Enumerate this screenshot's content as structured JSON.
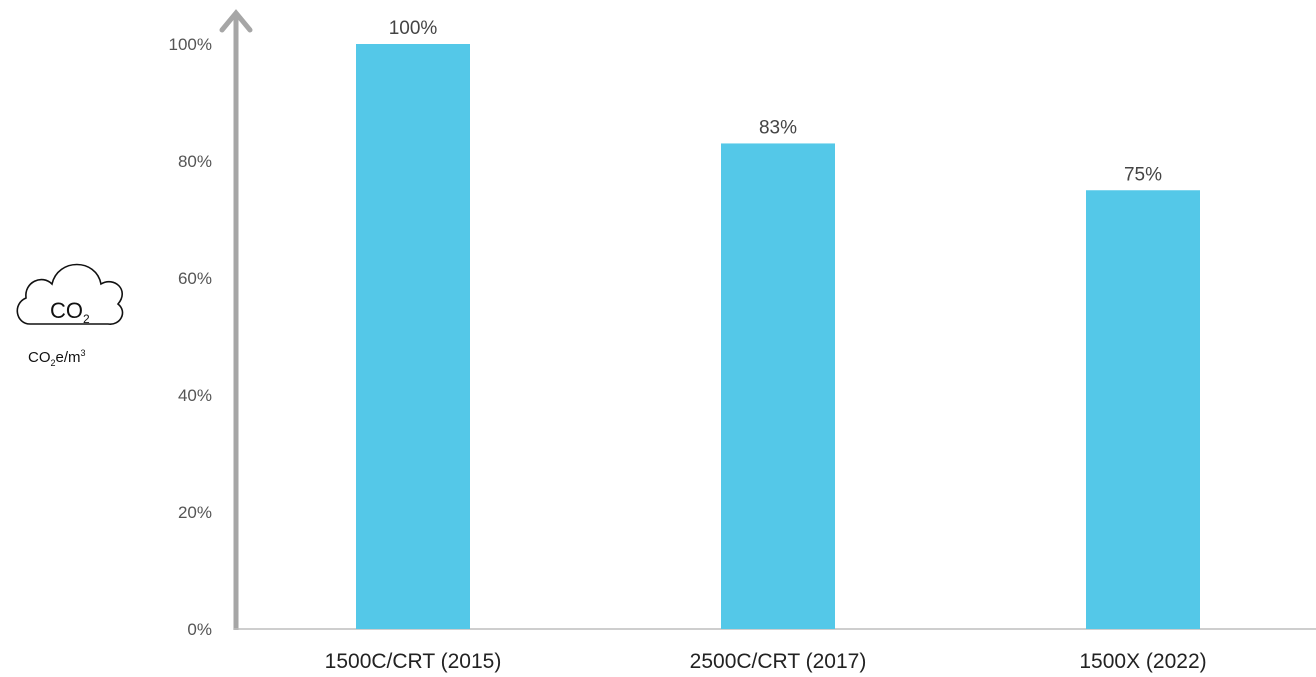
{
  "chart_data": {
    "type": "bar",
    "categories": [
      "1500C/CRT (2015)",
      "2500C/CRT (2017)",
      "1500X (2022)"
    ],
    "values": [
      100,
      83,
      75
    ],
    "data_labels": [
      "100%",
      "83%",
      "75%"
    ],
    "ylim": [
      0,
      100
    ],
    "yticks": [
      0,
      20,
      40,
      60,
      80,
      100
    ],
    "ytick_labels": [
      "0%",
      "20%",
      "40%",
      "60%",
      "80%",
      "100%"
    ],
    "ylabel_icon": "co2-cloud-icon",
    "ylabel_icon_text": {
      "base": "CO",
      "sub": "2"
    },
    "ylabel_unit": {
      "base": "CO",
      "sub": "2",
      "rest": "e/m",
      "sup": "3"
    },
    "bar_color": "#54C8E8",
    "axis_color": "#A6A6A6",
    "grid": false,
    "legend": "none"
  }
}
